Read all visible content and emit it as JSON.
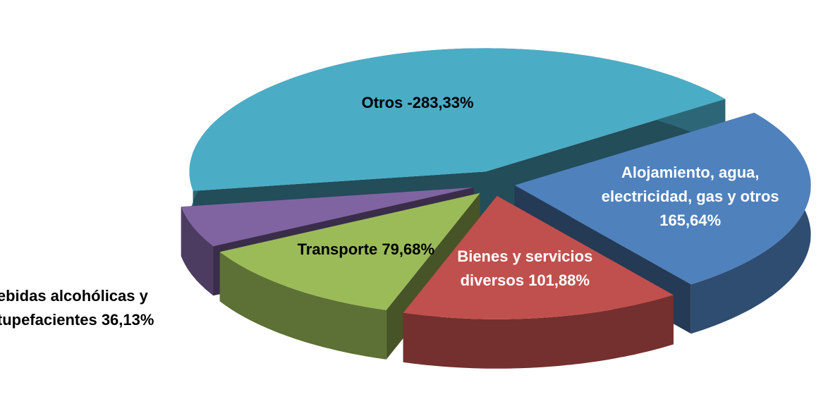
{
  "chart_data": {
    "type": "pie3d",
    "categories": [
      "Otros",
      "Alojamiento, agua, electricidad, gas y otros",
      "Bienes y servicios diversos",
      "Transporte",
      "Bebidas alcohólicas y estupefacientes"
    ],
    "values": [
      -283.33,
      165.64,
      101.88,
      79.68,
      36.13
    ],
    "value_labels": [
      "-283,33%",
      "165,64%",
      "101,88%",
      "79,68%",
      "36,13%"
    ],
    "colors": [
      "#4bacc6",
      "#4f81bd",
      "#c0504d",
      "#9bbb59",
      "#8064a2"
    ],
    "label_colors": [
      "#000000",
      "#ffffff",
      "#ffffff",
      "#000000",
      "#000000"
    ]
  }
}
